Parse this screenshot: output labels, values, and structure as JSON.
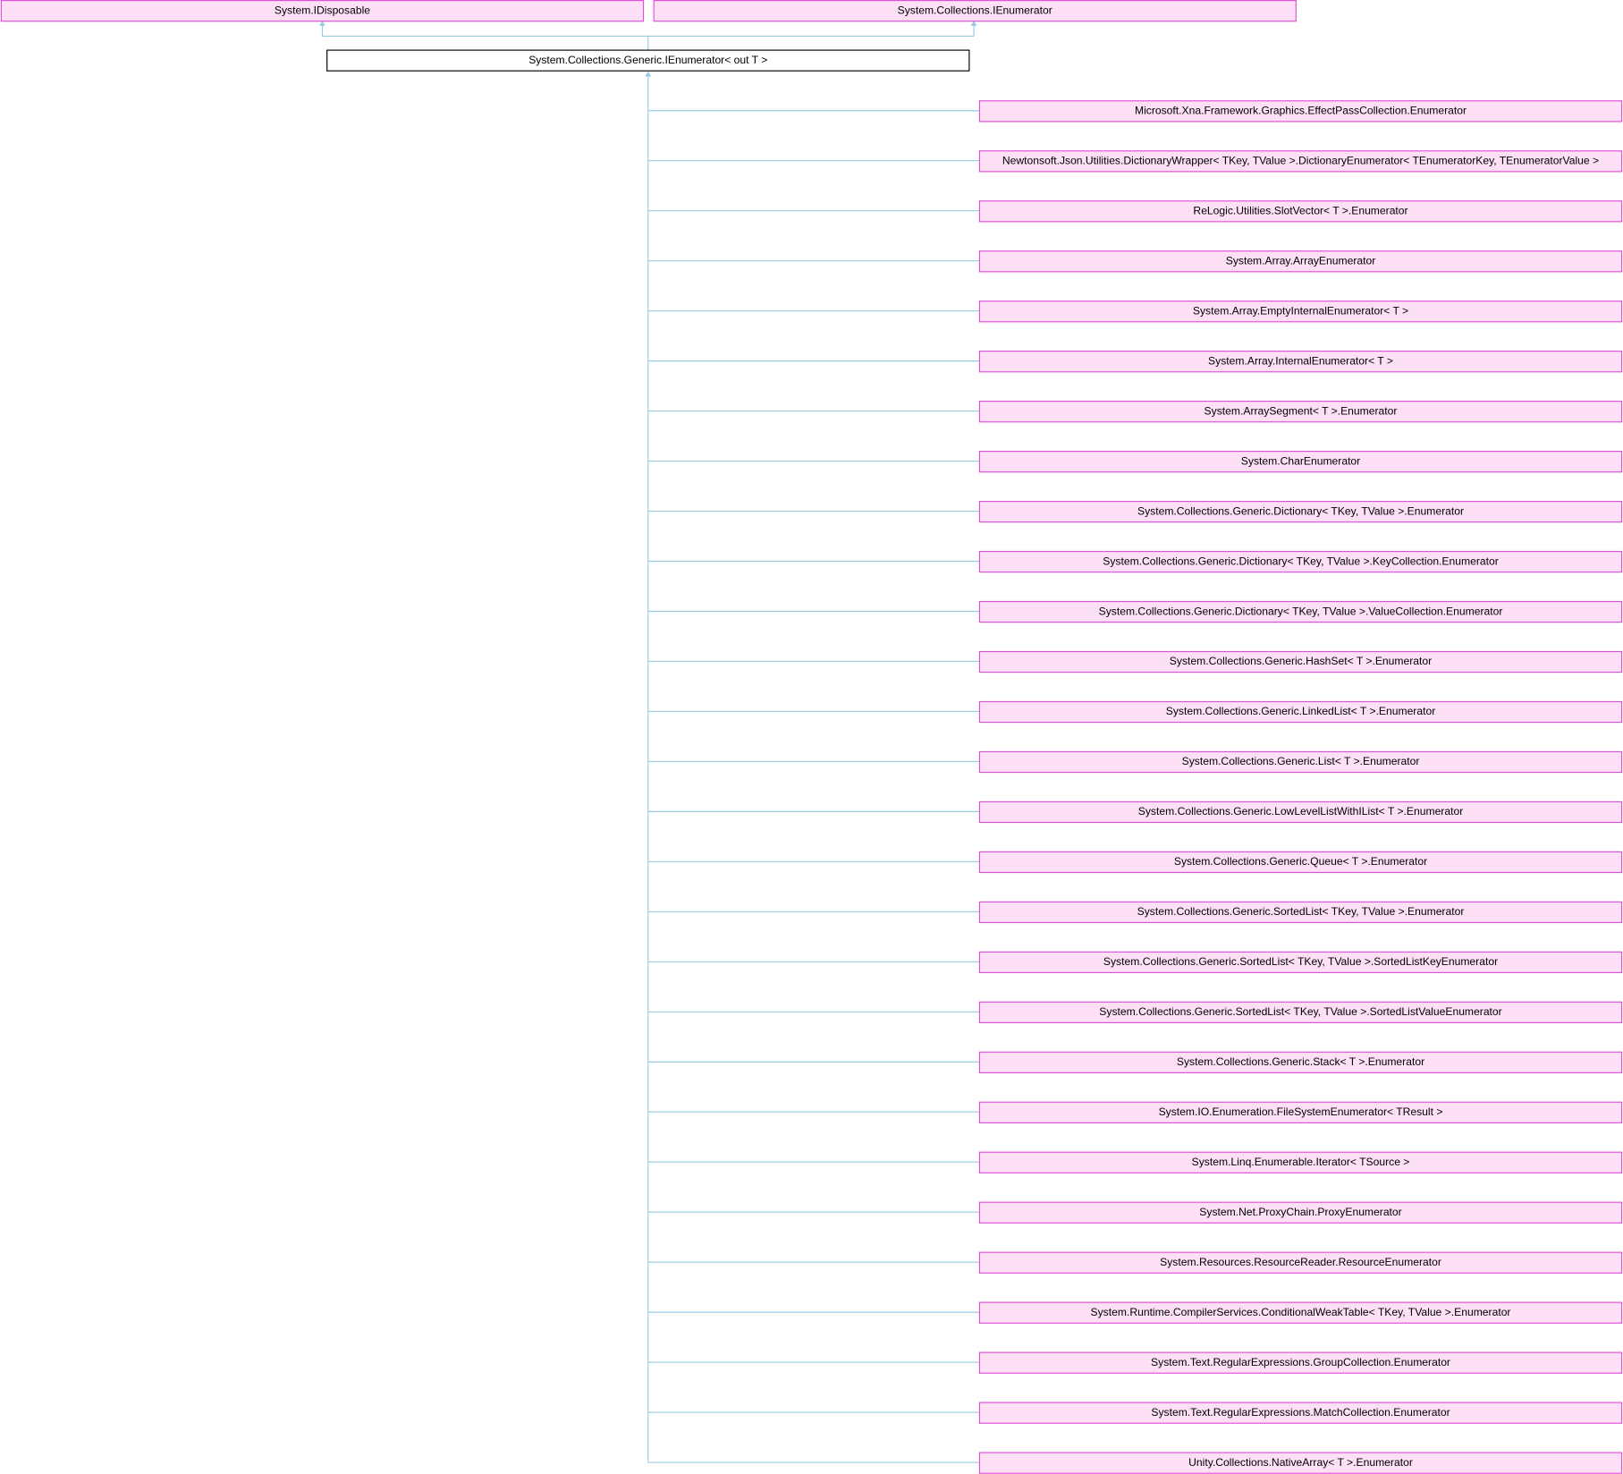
{
  "parents": [
    "System.IDisposable",
    "System.Collections.IEnumerator"
  ],
  "main": "System.Collections.Generic.IEnumerator< out T >",
  "children": [
    "Microsoft.Xna.Framework.Graphics.EffectPassCollection.Enumerator",
    "Newtonsoft.Json.Utilities.DictionaryWrapper< TKey, TValue >.DictionaryEnumerator< TEnumeratorKey, TEnumeratorValue >",
    "ReLogic.Utilities.SlotVector< T >.Enumerator",
    "System.Array.ArrayEnumerator",
    "System.Array.EmptyInternalEnumerator< T >",
    "System.Array.InternalEnumerator< T >",
    "System.ArraySegment< T >.Enumerator",
    "System.CharEnumerator",
    "System.Collections.Generic.Dictionary< TKey, TValue >.Enumerator",
    "System.Collections.Generic.Dictionary< TKey, TValue >.KeyCollection.Enumerator",
    "System.Collections.Generic.Dictionary< TKey, TValue >.ValueCollection.Enumerator",
    "System.Collections.Generic.HashSet< T >.Enumerator",
    "System.Collections.Generic.LinkedList< T >.Enumerator",
    "System.Collections.Generic.List< T >.Enumerator",
    "System.Collections.Generic.LowLevelListWithIList< T >.Enumerator",
    "System.Collections.Generic.Queue< T >.Enumerator",
    "System.Collections.Generic.SortedList< TKey, TValue >.Enumerator",
    "System.Collections.Generic.SortedList< TKey, TValue >.SortedListKeyEnumerator",
    "System.Collections.Generic.SortedList< TKey, TValue >.SortedListValueEnumerator",
    "System.Collections.Generic.Stack< T >.Enumerator",
    "System.IO.Enumeration.FileSystemEnumerator< TResult >",
    "System.Linq.Enumerable.Iterator< TSource >",
    "System.Net.ProxyChain.ProxyEnumerator",
    "System.Resources.ResourceReader.ResourceEnumerator",
    "System.Runtime.CompilerServices.ConditionalWeakTable< TKey, TValue >.Enumerator",
    "System.Text.RegularExpressions.GroupCollection.Enumerator",
    "System.Text.RegularExpressions.MatchCollection.Enumerator",
    "Unity.Collections.NativeArray< T >.Enumerator"
  ]
}
